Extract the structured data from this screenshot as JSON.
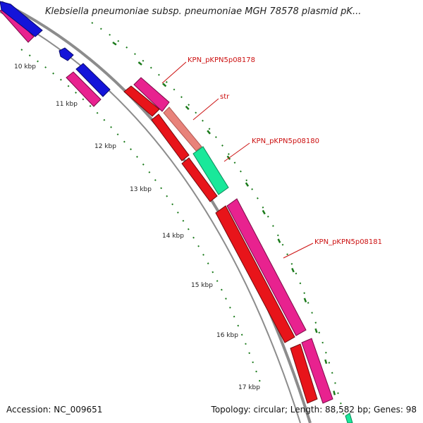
{
  "header": {
    "title": "Klebsiella pneumoniae subsp. pneumoniae MGH 78578 plasmid pK..."
  },
  "footer": {
    "accession": "Accession: NC_009651",
    "summary": "Topology: circular; Length: 88,582 bp; Genes: 98"
  },
  "map": {
    "ticks": [
      {
        "label": "10 kbp"
      },
      {
        "label": "11 kbp"
      },
      {
        "label": "12 kbp"
      },
      {
        "label": "13 kbp"
      },
      {
        "label": "14 kbp"
      },
      {
        "label": "15 kbp"
      },
      {
        "label": "16 kbp"
      },
      {
        "label": "17 kbp"
      }
    ],
    "gene_labels": [
      {
        "text": "KPN_pKPN5p08178"
      },
      {
        "text": "str"
      },
      {
        "text": "KPN_pKPN5p08180"
      },
      {
        "text": "KPN_pKPN5p08181"
      }
    ],
    "colors": {
      "backbone": "#8c8c8c",
      "magenta_feature": "#e8228f",
      "red_feature": "#e8141a",
      "blue_feature": "#1414d9",
      "salmon_feature": "#e8827a",
      "green_feature": "#19e89a",
      "tick_marks": "#1a7a1a",
      "label_text": "#cc1111"
    }
  }
}
